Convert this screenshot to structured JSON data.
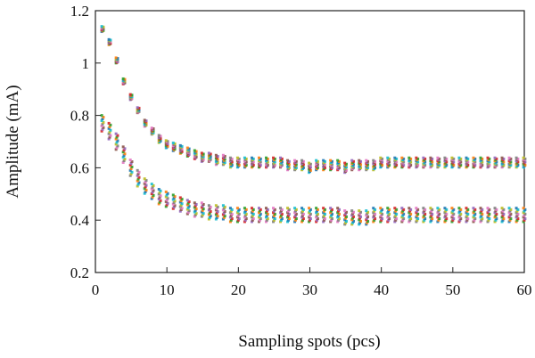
{
  "chart_data": {
    "type": "scatter",
    "title": "",
    "xlabel": "Sampling spots (pcs)",
    "ylabel": "Amplitude (mA)",
    "xlim": [
      0,
      60
    ],
    "ylim": [
      0.2,
      1.2
    ],
    "xticks": [
      0,
      10,
      20,
      30,
      40,
      50,
      60
    ],
    "yticks": [
      0.2,
      0.4,
      0.6,
      0.8,
      1,
      1.2
    ],
    "grid": false,
    "legend": "none",
    "x": [
      1,
      2,
      3,
      4,
      5,
      6,
      7,
      8,
      9,
      10,
      11,
      12,
      13,
      14,
      15,
      16,
      17,
      18,
      19,
      20,
      21,
      22,
      23,
      24,
      25,
      26,
      27,
      28,
      29,
      30,
      31,
      32,
      33,
      34,
      35,
      36,
      37,
      38,
      39,
      40,
      41,
      42,
      43,
      44,
      45,
      46,
      47,
      48,
      49,
      50,
      51,
      52,
      53,
      54,
      55,
      56,
      57,
      58,
      59,
      60
    ],
    "series": [
      {
        "values": [
          1.13,
          1.08,
          1.01,
          0.93,
          0.87,
          0.82,
          0.77,
          0.74,
          0.71,
          0.69,
          0.68,
          0.67,
          0.66,
          0.65,
          0.64,
          0.64,
          0.63,
          0.63,
          0.62,
          0.62,
          0.62,
          0.62,
          0.62,
          0.62,
          0.62,
          0.62,
          0.61,
          0.61,
          0.61,
          0.6,
          0.61,
          0.61,
          0.61,
          0.61,
          0.6,
          0.61,
          0.61,
          0.61,
          0.61,
          0.62,
          0.62,
          0.62,
          0.62,
          0.62,
          0.62,
          0.62,
          0.62,
          0.62,
          0.62,
          0.62,
          0.62,
          0.62,
          0.62,
          0.62,
          0.62,
          0.62,
          0.62,
          0.62,
          0.62,
          0.62
        ],
        "spread": [
          0.01,
          0.01,
          0.01,
          0.01,
          0.01,
          0.01,
          0.012,
          0.012,
          0.014,
          0.014,
          0.015,
          0.015,
          0.016,
          0.016,
          0.016,
          0.016,
          0.018,
          0.018,
          0.018,
          0.018,
          0.018,
          0.018,
          0.018,
          0.018,
          0.018,
          0.018,
          0.018,
          0.018,
          0.018,
          0.018,
          0.018,
          0.018,
          0.018,
          0.018,
          0.018,
          0.018,
          0.018,
          0.018,
          0.018,
          0.018,
          0.018,
          0.018,
          0.018,
          0.018,
          0.018,
          0.018,
          0.018,
          0.018,
          0.018,
          0.018,
          0.018,
          0.018,
          0.018,
          0.018,
          0.018,
          0.018,
          0.018,
          0.018,
          0.018,
          0.018
        ]
      },
      {
        "values": [
          0.77,
          0.74,
          0.7,
          0.65,
          0.6,
          0.56,
          0.53,
          0.51,
          0.49,
          0.48,
          0.47,
          0.46,
          0.45,
          0.44,
          0.44,
          0.43,
          0.43,
          0.43,
          0.42,
          0.42,
          0.42,
          0.42,
          0.42,
          0.42,
          0.42,
          0.42,
          0.42,
          0.42,
          0.42,
          0.42,
          0.42,
          0.42,
          0.42,
          0.42,
          0.41,
          0.41,
          0.41,
          0.41,
          0.42,
          0.42,
          0.42,
          0.42,
          0.42,
          0.42,
          0.42,
          0.42,
          0.42,
          0.42,
          0.42,
          0.42,
          0.42,
          0.42,
          0.42,
          0.42,
          0.42,
          0.42,
          0.42,
          0.42,
          0.42,
          0.42
        ],
        "spread": [
          0.03,
          0.03,
          0.03,
          0.03,
          0.03,
          0.03,
          0.028,
          0.028,
          0.028,
          0.028,
          0.026,
          0.026,
          0.026,
          0.026,
          0.026,
          0.026,
          0.026,
          0.026,
          0.026,
          0.026,
          0.026,
          0.026,
          0.026,
          0.026,
          0.026,
          0.026,
          0.026,
          0.026,
          0.026,
          0.026,
          0.026,
          0.026,
          0.026,
          0.026,
          0.026,
          0.026,
          0.026,
          0.026,
          0.026,
          0.026,
          0.026,
          0.026,
          0.026,
          0.026,
          0.026,
          0.026,
          0.026,
          0.026,
          0.026,
          0.026,
          0.026,
          0.026,
          0.026,
          0.026,
          0.026,
          0.026,
          0.026,
          0.026,
          0.026,
          0.026
        ]
      }
    ],
    "colors": [
      "#1f77b4",
      "#ff7f0e",
      "#2ca02c",
      "#d62728",
      "#9467bd",
      "#8c564b",
      "#e377c2",
      "#7f7f7f",
      "#bcbd22",
      "#17becf"
    ]
  }
}
